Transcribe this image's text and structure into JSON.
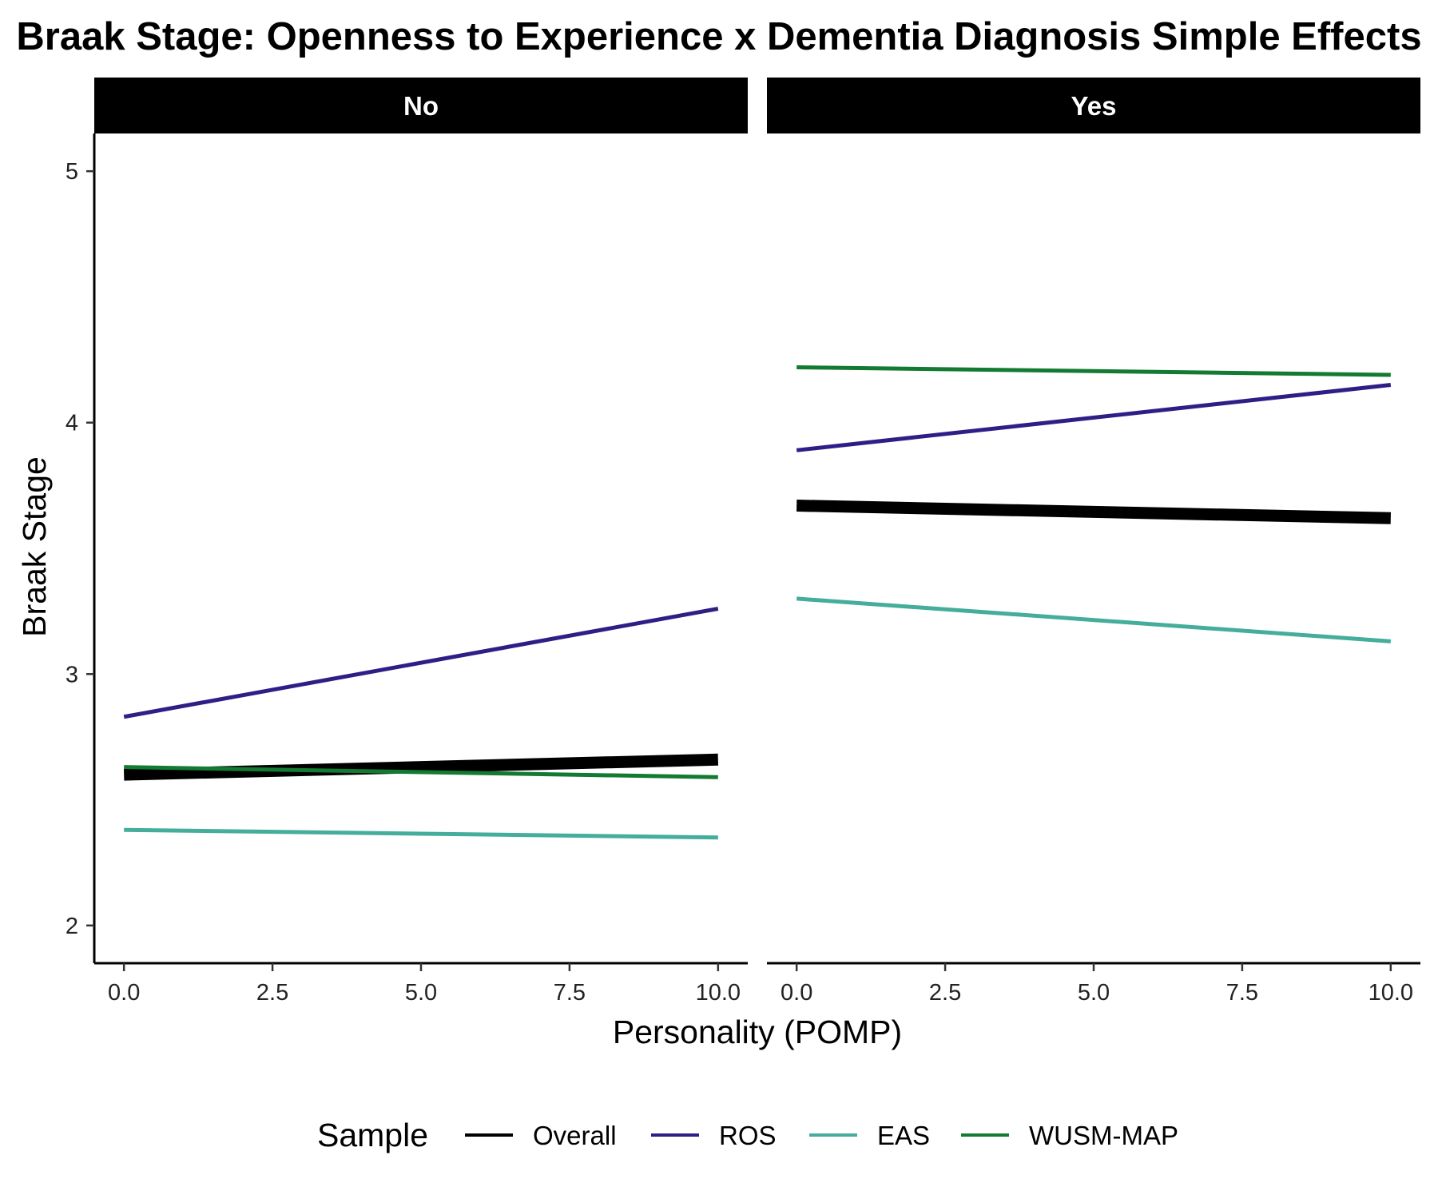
{
  "chart_data": {
    "type": "line",
    "title": "Braak Stage: Openness to Experience x Dementia Diagnosis Simple Effects",
    "xlabel": "Personality (POMP)",
    "ylabel": "Braak Stage",
    "xlim": [
      -0.5,
      10.5
    ],
    "ylim": [
      1.85,
      5.15
    ],
    "x_ticks": [
      "0.0",
      "2.5",
      "5.0",
      "7.5",
      "10.0"
    ],
    "x_tick_values": [
      0,
      2.5,
      5,
      7.5,
      10
    ],
    "y_ticks": [
      "2",
      "3",
      "4",
      "5"
    ],
    "y_tick_values": [
      2,
      3,
      4,
      5
    ],
    "grid": false,
    "legend": {
      "title": "Sample",
      "position": "bottom"
    },
    "facets": [
      {
        "label": "No",
        "series": [
          {
            "name": "Overall",
            "color": "#000000",
            "x": [
              0,
              10
            ],
            "y": [
              2.6,
              2.66
            ]
          },
          {
            "name": "ROS",
            "color": "#2E1F87",
            "x": [
              0,
              10
            ],
            "y": [
              2.83,
              3.26
            ]
          },
          {
            "name": "EAS",
            "color": "#45AD9B",
            "x": [
              0,
              10
            ],
            "y": [
              2.38,
              2.35
            ]
          },
          {
            "name": "WUSM-MAP",
            "color": "#137A32",
            "x": [
              0,
              10
            ],
            "y": [
              2.63,
              2.59
            ]
          }
        ]
      },
      {
        "label": "Yes",
        "series": [
          {
            "name": "Overall",
            "color": "#000000",
            "x": [
              0,
              10
            ],
            "y": [
              3.67,
              3.62
            ]
          },
          {
            "name": "ROS",
            "color": "#2E1F87",
            "x": [
              0,
              10
            ],
            "y": [
              3.89,
              4.15
            ]
          },
          {
            "name": "EAS",
            "color": "#45AD9B",
            "x": [
              0,
              10
            ],
            "y": [
              3.3,
              3.13
            ]
          },
          {
            "name": "WUSM-MAP",
            "color": "#137A32",
            "x": [
              0,
              10
            ],
            "y": [
              4.22,
              4.19
            ]
          }
        ]
      }
    ]
  }
}
